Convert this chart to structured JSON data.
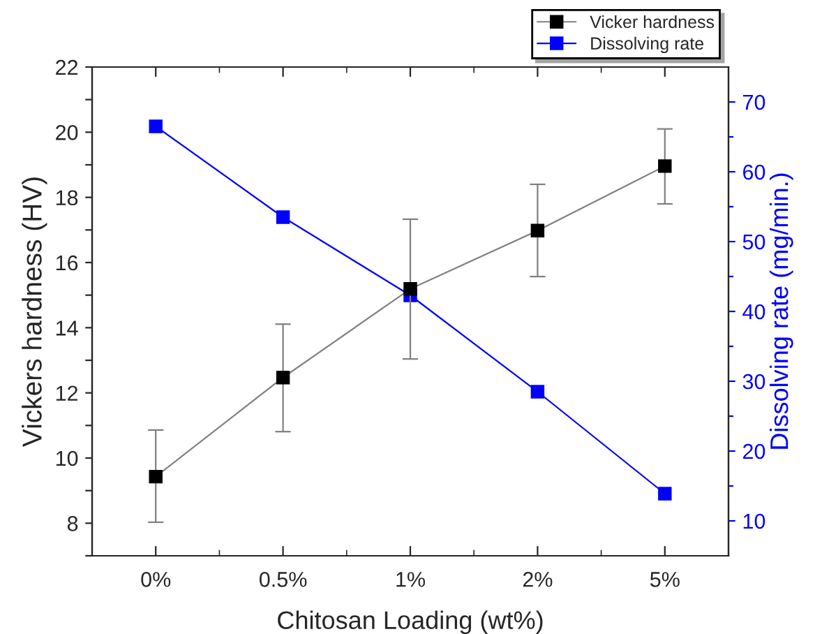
{
  "chart_data": {
    "type": "line",
    "xlabel": "Chitosan Loading (wt%)",
    "ylabel": "Vickers hardness (HV)",
    "y2label": "Dissolving rate (mg/min.)",
    "categories": [
      "0%",
      "0.5%",
      "1%",
      "2%",
      "5%"
    ],
    "series": [
      {
        "name": "Vicker hardness",
        "color": "#000000",
        "values": [
          9.43,
          12.47,
          15.19,
          16.98,
          18.96
        ],
        "errors": [
          [
            8.03,
            10.86
          ],
          [
            10.81,
            14.11
          ],
          [
            13.04,
            17.33
          ],
          [
            15.57,
            18.4
          ],
          [
            17.8,
            20.1
          ]
        ]
      },
      {
        "name": "Dissolving rate",
        "color": "#0000ff",
        "axis": "y2",
        "values": [
          66.5,
          53.5,
          42.3,
          28.5,
          13.9
        ]
      }
    ],
    "ylim": [
      7,
      22
    ],
    "yticks": [
      {
        "value": 7,
        "label": null
      },
      8,
      {
        "value": 9,
        "label": null
      },
      10,
      {
        "value": 11,
        "label": null
      },
      12,
      {
        "value": 13,
        "label": null
      },
      14,
      {
        "value": 15,
        "label": null
      },
      16,
      {
        "value": 17,
        "label": null
      },
      18,
      {
        "value": 19,
        "label": null
      },
      20,
      {
        "value": 21,
        "label": null
      },
      22
    ],
    "y2lim": [
      5,
      75
    ],
    "y2ticks": [
      10,
      {
        "value": 15,
        "label": null
      },
      20,
      {
        "value": 25,
        "label": null
      },
      30,
      {
        "value": 35,
        "label": null
      },
      40,
      {
        "value": 45,
        "label": null
      },
      50,
      {
        "value": 55,
        "label": null
      },
      60,
      {
        "value": 65,
        "label": null
      },
      70
    ],
    "marker": "square",
    "line_style": "solid",
    "grid": false,
    "legend": "top right"
  }
}
